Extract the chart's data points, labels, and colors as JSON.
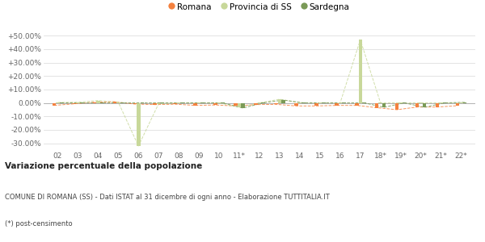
{
  "x_labels": [
    "02",
    "03",
    "04",
    "05",
    "06",
    "07",
    "08",
    "09",
    "10",
    "11*",
    "12",
    "13",
    "14",
    "15",
    "16",
    "17",
    "18*",
    "19*",
    "20*",
    "21*",
    "22*"
  ],
  "romana": [
    -1.8,
    -0.6,
    0.6,
    0.9,
    -0.8,
    -1.2,
    -0.9,
    -1.8,
    -1.5,
    -2.2,
    -1.2,
    -1.0,
    -2.2,
    -2.2,
    -1.8,
    -1.8,
    -3.5,
    -5.0,
    -3.0,
    -3.0,
    -2.0
  ],
  "provincia_ss": [
    0.4,
    0.6,
    1.8,
    0.6,
    -32.0,
    -0.5,
    0.1,
    0.1,
    0.1,
    -3.2,
    0.1,
    2.8,
    0.1,
    0.1,
    0.1,
    47.0,
    0.1,
    0.1,
    0.1,
    0.1,
    0.1
  ],
  "sardegna": [
    0.1,
    0.1,
    0.1,
    0.1,
    0.1,
    0.1,
    0.1,
    0.1,
    0.1,
    -3.8,
    0.1,
    2.2,
    0.1,
    0.1,
    0.1,
    0.1,
    -3.2,
    0.1,
    -3.2,
    0.1,
    0.5
  ],
  "romana_color": "#f4813f",
  "provincia_ss_color": "#c8d89a",
  "sardegna_color": "#7a9a57",
  "background_color": "#ffffff",
  "grid_color": "#d8d8d8",
  "ylim_min": -35,
  "ylim_max": 55,
  "yticks": [
    -30,
    -20,
    -10,
    0,
    10,
    20,
    30,
    40,
    50
  ],
  "title_bold": "Variazione percentuale della popolazione",
  "subtitle1": "COMUNE DI ROMANA (SS) - Dati ISTAT al 31 dicembre di ogni anno - Elaborazione TUTTITALIA.IT",
  "subtitle2": "(*) post-censimento",
  "legend_labels": [
    "Romana",
    "Provincia di SS",
    "Sardegna"
  ]
}
